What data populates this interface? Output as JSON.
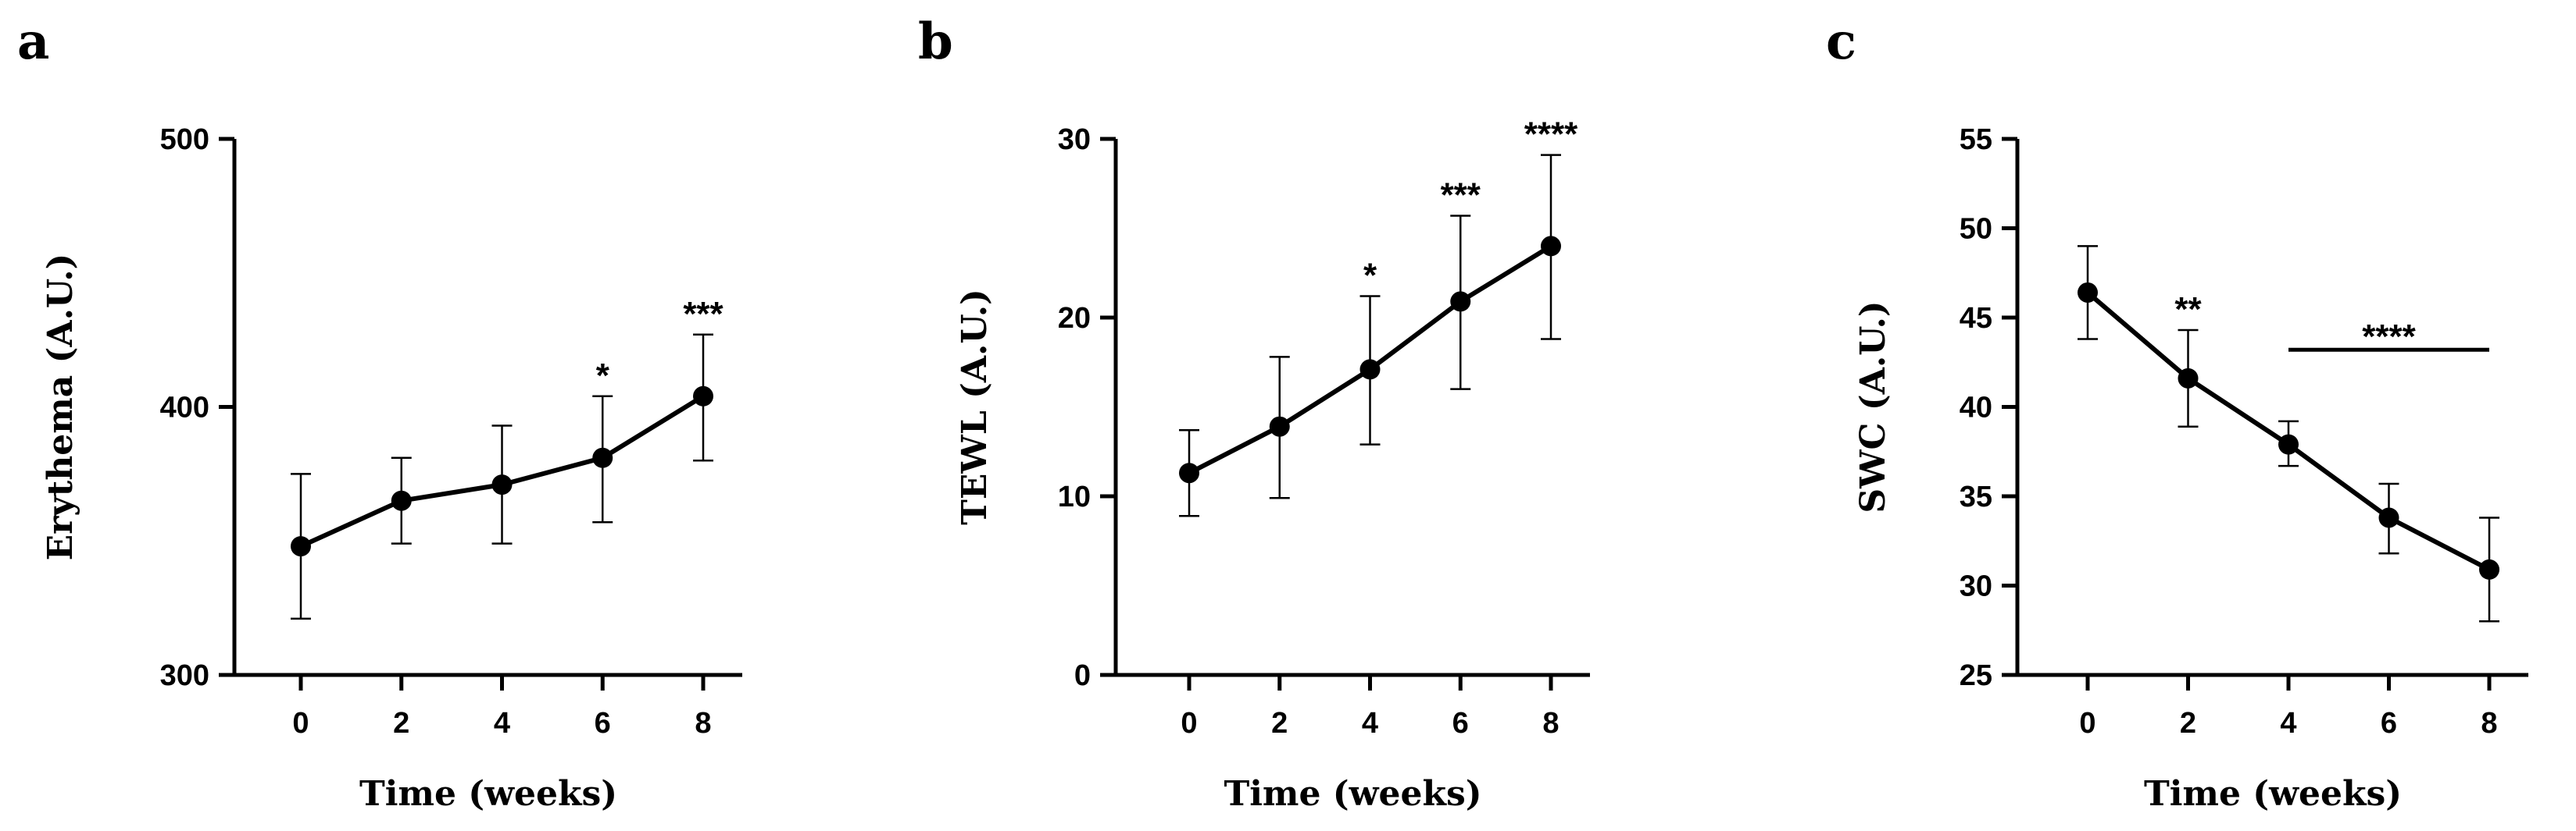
{
  "chart_data": [
    {
      "type": "line",
      "panel": "a",
      "xlabel": "Time (weeks)",
      "ylabel": "Erythema (A.U.)",
      "x": [
        0,
        2,
        4,
        6,
        8
      ],
      "xticks": [
        "0",
        "2",
        "4",
        "6",
        "8"
      ],
      "yticks": [
        "300",
        "400",
        "500"
      ],
      "ylim": [
        300,
        500
      ],
      "series": [
        {
          "name": "Erythema",
          "values": [
            348,
            365,
            371,
            381,
            404
          ],
          "err_low": [
            321,
            349,
            349,
            357,
            380
          ],
          "err_high": [
            375,
            381,
            393,
            404,
            427
          ]
        }
      ],
      "annotations": [
        {
          "x": 6,
          "text": "*"
        },
        {
          "x": 8,
          "text": "***"
        }
      ]
    },
    {
      "type": "line",
      "panel": "b",
      "xlabel": "Time (weeks)",
      "ylabel": "TEWL (A.U.)",
      "x": [
        0,
        2,
        4,
        6,
        8
      ],
      "xticks": [
        "0",
        "2",
        "4",
        "6",
        "8"
      ],
      "yticks": [
        "0",
        "10",
        "20",
        "30"
      ],
      "ylim": [
        0,
        30
      ],
      "series": [
        {
          "name": "TEWL",
          "values": [
            11.3,
            13.9,
            17.1,
            20.9,
            24.0
          ],
          "err_low": [
            8.9,
            9.9,
            12.9,
            16.0,
            18.8
          ],
          "err_high": [
            13.7,
            17.8,
            21.2,
            25.7,
            29.1
          ]
        }
      ],
      "annotations": [
        {
          "x": 4,
          "text": "*"
        },
        {
          "x": 6,
          "text": "***"
        },
        {
          "x": 8,
          "text": "****"
        }
      ]
    },
    {
      "type": "line",
      "panel": "c",
      "xlabel": "Time (weeks)",
      "ylabel": "SWC (A.U.)",
      "x": [
        0,
        2,
        4,
        6,
        8
      ],
      "xticks": [
        "0",
        "2",
        "4",
        "6",
        "8"
      ],
      "yticks": [
        "25",
        "30",
        "35",
        "40",
        "45",
        "50",
        "55"
      ],
      "ylim": [
        25,
        55
      ],
      "series": [
        {
          "name": "SWC",
          "values": [
            46.4,
            41.6,
            37.9,
            33.8,
            30.9
          ],
          "err_low": [
            43.8,
            38.9,
            36.7,
            31.8,
            28.0
          ],
          "err_high": [
            49.0,
            44.3,
            39.2,
            35.7,
            33.8
          ]
        }
      ],
      "annotations": [
        {
          "x": 2,
          "text": "**"
        },
        {
          "x_from": 4,
          "x_to": 8,
          "y": 43.2,
          "text": "****"
        }
      ]
    }
  ]
}
